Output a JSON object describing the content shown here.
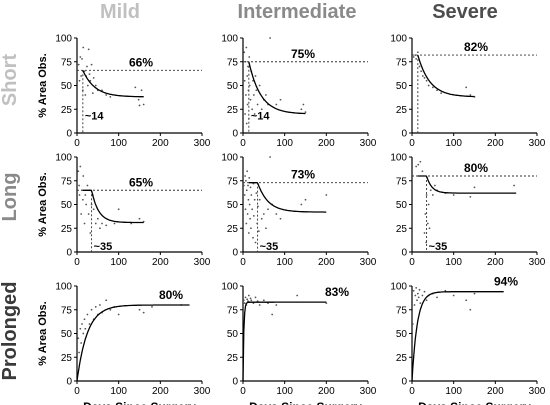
{
  "column_titles": [
    {
      "label": "Mild",
      "color": "#c0c0c0"
    },
    {
      "label": "Intermediate",
      "color": "#8a8a8a"
    },
    {
      "label": "Severe",
      "color": "#4d4d4d"
    }
  ],
  "row_titles": [
    {
      "label": "Short",
      "color": "#c0c0c0"
    },
    {
      "label": "Long",
      "color": "#8a8a8a"
    },
    {
      "label": "Prolonged",
      "color": "#3a3a3a"
    }
  ],
  "y_axis_label": "% Area Obs.",
  "x_axis_label": "Days Since Surgery",
  "chart_data": [
    {
      "type": "scatter",
      "row": "Short",
      "column": "Mild",
      "xlim": [
        0,
        300
      ],
      "ylim": [
        0,
        100
      ],
      "x_ticks": [
        0,
        100,
        200,
        300
      ],
      "y_ticks": [
        0,
        25,
        50,
        75,
        100
      ],
      "plateau_label": "66%",
      "plateau": 66,
      "onset_label": "~14",
      "onset": 14,
      "curve": {
        "kind": "decay",
        "start_y": 66,
        "end_y": 38,
        "x_end": 160,
        "rate": 0.035
      },
      "points": [
        [
          4,
          72
        ],
        [
          6,
          55
        ],
        [
          8,
          80
        ],
        [
          10,
          60
        ],
        [
          12,
          78
        ],
        [
          14,
          45
        ],
        [
          15,
          90
        ],
        [
          18,
          65
        ],
        [
          20,
          40
        ],
        [
          22,
          60
        ],
        [
          24,
          70
        ],
        [
          26,
          50
        ],
        [
          28,
          88
        ],
        [
          30,
          62
        ],
        [
          32,
          55
        ],
        [
          35,
          72
        ],
        [
          38,
          42
        ],
        [
          40,
          58
        ],
        [
          45,
          50
        ],
        [
          50,
          45
        ],
        [
          60,
          45
        ],
        [
          70,
          40
        ],
        [
          80,
          38
        ],
        [
          140,
          48
        ],
        [
          148,
          35
        ],
        [
          150,
          29
        ],
        [
          160,
          30
        ],
        [
          155,
          45
        ]
      ]
    },
    {
      "type": "scatter",
      "row": "Short",
      "column": "Intermediate",
      "xlim": [
        0,
        300
      ],
      "ylim": [
        0,
        100
      ],
      "x_ticks": [
        0,
        100,
        200,
        300
      ],
      "y_ticks": [
        0,
        25,
        50,
        75,
        100
      ],
      "plateau_label": "75%",
      "plateau": 75,
      "onset_label": "~14",
      "onset": 14,
      "curve": {
        "kind": "decay",
        "start_y": 75,
        "end_y": 20,
        "x_end": 150,
        "rate": 0.035
      },
      "points": [
        [
          3,
          85
        ],
        [
          4,
          55
        ],
        [
          5,
          20
        ],
        [
          6,
          75
        ],
        [
          7,
          40
        ],
        [
          8,
          90
        ],
        [
          9,
          10
        ],
        [
          10,
          60
        ],
        [
          11,
          30
        ],
        [
          12,
          70
        ],
        [
          13,
          45
        ],
        [
          14,
          15
        ],
        [
          15,
          80
        ],
        [
          16,
          50
        ],
        [
          18,
          35
        ],
        [
          20,
          65
        ],
        [
          22,
          25
        ],
        [
          24,
          55
        ],
        [
          26,
          40
        ],
        [
          28,
          20
        ],
        [
          30,
          60
        ],
        [
          32,
          45
        ],
        [
          35,
          30
        ],
        [
          40,
          50
        ],
        [
          45,
          25
        ],
        [
          50,
          35
        ],
        [
          55,
          40
        ],
        [
          60,
          30
        ],
        [
          65,
          100
        ],
        [
          80,
          30
        ],
        [
          90,
          35
        ],
        [
          140,
          25
        ],
        [
          145,
          30
        ],
        [
          150,
          22
        ]
      ]
    },
    {
      "type": "scatter",
      "row": "Short",
      "column": "Severe",
      "xlim": [
        0,
        300
      ],
      "ylim": [
        0,
        100
      ],
      "x_ticks": [
        0,
        100,
        200,
        300
      ],
      "y_ticks": [
        0,
        25,
        50,
        75,
        100
      ],
      "plateau_label": "82%",
      "plateau": 82,
      "onset_label": "",
      "onset": 14,
      "curve": {
        "kind": "decay",
        "start_y": 82,
        "end_y": 38,
        "x_end": 150,
        "rate": 0.035
      },
      "points": [
        [
          4,
          80
        ],
        [
          8,
          82
        ],
        [
          10,
          78
        ],
        [
          14,
          85
        ],
        [
          18,
          70
        ],
        [
          22,
          65
        ],
        [
          26,
          60
        ],
        [
          30,
          58
        ],
        [
          35,
          55
        ],
        [
          40,
          50
        ],
        [
          50,
          48
        ],
        [
          60,
          45
        ],
        [
          70,
          42
        ],
        [
          130,
          48
        ],
        [
          140,
          40
        ],
        [
          150,
          38
        ]
      ]
    },
    {
      "type": "scatter",
      "row": "Long",
      "column": "Mild",
      "xlim": [
        0,
        300
      ],
      "ylim": [
        0,
        100
      ],
      "x_ticks": [
        0,
        100,
        200,
        300
      ],
      "y_ticks": [
        0,
        25,
        50,
        75,
        100
      ],
      "plateau_label": "65%",
      "plateau": 65,
      "onset_label": "~35",
      "onset": 35,
      "curve": {
        "kind": "delayed_decay",
        "start_y": 65,
        "end_y": 31,
        "x_end": 160,
        "rate": 0.06
      },
      "points": [
        [
          3,
          85
        ],
        [
          5,
          70
        ],
        [
          6,
          60
        ],
        [
          8,
          90
        ],
        [
          10,
          40
        ],
        [
          12,
          65
        ],
        [
          14,
          55
        ],
        [
          15,
          80
        ],
        [
          18,
          30
        ],
        [
          20,
          60
        ],
        [
          22,
          50
        ],
        [
          25,
          70
        ],
        [
          28,
          40
        ],
        [
          30,
          65
        ],
        [
          32,
          20
        ],
        [
          35,
          50
        ],
        [
          38,
          60
        ],
        [
          40,
          45
        ],
        [
          45,
          30
        ],
        [
          50,
          35
        ],
        [
          55,
          25
        ],
        [
          60,
          30
        ],
        [
          70,
          28
        ],
        [
          90,
          30
        ],
        [
          100,
          45
        ],
        [
          130,
          30
        ],
        [
          150,
          35
        ],
        [
          160,
          32
        ]
      ]
    },
    {
      "type": "scatter",
      "row": "Long",
      "column": "Intermediate",
      "xlim": [
        0,
        300
      ],
      "ylim": [
        0,
        100
      ],
      "x_ticks": [
        0,
        100,
        200,
        300
      ],
      "y_ticks": [
        0,
        25,
        50,
        75,
        100
      ],
      "plateau_label": "73%",
      "plateau": 73,
      "onset_label": "~35",
      "onset": 35,
      "curve": {
        "kind": "delayed_decay",
        "start_y": 73,
        "end_y": 42,
        "x_end": 200,
        "rate": 0.04
      },
      "points": [
        [
          2,
          70
        ],
        [
          4,
          60
        ],
        [
          5,
          80
        ],
        [
          6,
          45
        ],
        [
          7,
          75
        ],
        [
          8,
          30
        ],
        [
          9,
          65
        ],
        [
          10,
          85
        ],
        [
          11,
          40
        ],
        [
          12,
          70
        ],
        [
          13,
          55
        ],
        [
          14,
          20
        ],
        [
          15,
          78
        ],
        [
          16,
          50
        ],
        [
          17,
          35
        ],
        [
          18,
          68
        ],
        [
          19,
          25
        ],
        [
          20,
          60
        ],
        [
          22,
          45
        ],
        [
          24,
          15
        ],
        [
          25,
          72
        ],
        [
          26,
          38
        ],
        [
          28,
          55
        ],
        [
          30,
          10
        ],
        [
          32,
          62
        ],
        [
          34,
          30
        ],
        [
          36,
          48
        ],
        [
          38,
          22
        ],
        [
          40,
          55
        ],
        [
          45,
          35
        ],
        [
          50,
          40
        ],
        [
          55,
          25
        ],
        [
          60,
          45
        ],
        [
          65,
          100
        ],
        [
          70,
          50
        ],
        [
          80,
          40
        ],
        [
          90,
          35
        ],
        [
          140,
          50
        ],
        [
          150,
          55
        ],
        [
          200,
          60
        ]
      ]
    },
    {
      "type": "scatter",
      "row": "Long",
      "column": "Severe",
      "xlim": [
        0,
        300
      ],
      "ylim": [
        0,
        100
      ],
      "x_ticks": [
        0,
        100,
        200,
        300
      ],
      "y_ticks": [
        0,
        25,
        50,
        75,
        100
      ],
      "plateau_label": "80%",
      "plateau": 80,
      "onset_label": "~35",
      "onset": 35,
      "curve": {
        "kind": "delayed_decay",
        "start_y": 80,
        "end_y": 62,
        "x_end": 250,
        "rate": 0.08
      },
      "points": [
        [
          10,
          90
        ],
        [
          15,
          92
        ],
        [
          20,
          95
        ],
        [
          25,
          85
        ],
        [
          30,
          20
        ],
        [
          32,
          40
        ],
        [
          34,
          10
        ],
        [
          35,
          60
        ],
        [
          38,
          30
        ],
        [
          40,
          50
        ],
        [
          42,
          25
        ],
        [
          45,
          65
        ],
        [
          50,
          60
        ],
        [
          55,
          70
        ],
        [
          60,
          65
        ],
        [
          80,
          62
        ],
        [
          100,
          60
        ],
        [
          140,
          58
        ],
        [
          150,
          68
        ],
        [
          245,
          70
        ]
      ]
    },
    {
      "type": "scatter",
      "row": "Prolonged",
      "column": "Mild",
      "xlim": [
        0,
        300
      ],
      "ylim": [
        0,
        100
      ],
      "x_ticks": [
        0,
        100,
        200,
        300
      ],
      "y_ticks": [
        0,
        25,
        50,
        75,
        100
      ],
      "plateau_label": "80%",
      "plateau": 80,
      "onset_label": "",
      "onset": null,
      "curve": {
        "kind": "rise",
        "start_y": 0,
        "end_y": 80,
        "x_end": 270,
        "rate": 0.04
      },
      "points": [
        [
          3,
          45
        ],
        [
          5,
          30
        ],
        [
          8,
          55
        ],
        [
          10,
          40
        ],
        [
          12,
          60
        ],
        [
          15,
          50
        ],
        [
          18,
          65
        ],
        [
          20,
          55
        ],
        [
          25,
          70
        ],
        [
          30,
          60
        ],
        [
          35,
          75
        ],
        [
          40,
          65
        ],
        [
          45,
          78
        ],
        [
          50,
          70
        ],
        [
          55,
          80
        ],
        [
          60,
          72
        ],
        [
          70,
          85
        ],
        [
          80,
          75
        ],
        [
          90,
          78
        ],
        [
          100,
          70
        ],
        [
          150,
          75
        ],
        [
          160,
          72
        ],
        [
          180,
          78
        ],
        [
          250,
          80
        ]
      ]
    },
    {
      "type": "scatter",
      "row": "Prolonged",
      "column": "Intermediate",
      "xlim": [
        0,
        300
      ],
      "ylim": [
        0,
        100
      ],
      "x_ticks": [
        0,
        100,
        200,
        300
      ],
      "y_ticks": [
        0,
        25,
        50,
        75,
        100
      ],
      "plateau_label": "83%",
      "plateau": 83,
      "onset_label": "",
      "onset": null,
      "curve": {
        "kind": "rise",
        "start_y": 0,
        "end_y": 83,
        "x_end": 200,
        "rate": 0.5
      },
      "points": [
        [
          2,
          85
        ],
        [
          4,
          82
        ],
        [
          6,
          88
        ],
        [
          8,
          80
        ],
        [
          10,
          86
        ],
        [
          12,
          84
        ],
        [
          14,
          90
        ],
        [
          16,
          83
        ],
        [
          18,
          87
        ],
        [
          20,
          85
        ],
        [
          25,
          82
        ],
        [
          30,
          88
        ],
        [
          35,
          84
        ],
        [
          40,
          80
        ],
        [
          50,
          85
        ],
        [
          60,
          82
        ],
        [
          70,
          70
        ],
        [
          80,
          80
        ],
        [
          130,
          90
        ],
        [
          200,
          82
        ]
      ]
    },
    {
      "type": "scatter",
      "row": "Prolonged",
      "column": "Severe",
      "xlim": [
        0,
        300
      ],
      "ylim": [
        0,
        100
      ],
      "x_ticks": [
        0,
        100,
        200,
        300
      ],
      "y_ticks": [
        0,
        25,
        50,
        75,
        100
      ],
      "plateau_label": "94%",
      "plateau": 94,
      "onset_label": "",
      "onset": null,
      "curve": {
        "kind": "rise",
        "start_y": 0,
        "end_y": 94,
        "x_end": 220,
        "rate": 0.08
      },
      "points": [
        [
          2,
          60
        ],
        [
          4,
          95
        ],
        [
          6,
          80
        ],
        [
          8,
          90
        ],
        [
          10,
          98
        ],
        [
          12,
          85
        ],
        [
          14,
          92
        ],
        [
          16,
          88
        ],
        [
          18,
          96
        ],
        [
          20,
          82
        ],
        [
          25,
          90
        ],
        [
          30,
          94
        ],
        [
          35,
          85
        ],
        [
          40,
          90
        ],
        [
          50,
          92
        ],
        [
          60,
          88
        ],
        [
          80,
          95
        ],
        [
          100,
          90
        ],
        [
          130,
          85
        ],
        [
          140,
          75
        ],
        [
          150,
          92
        ]
      ]
    }
  ]
}
